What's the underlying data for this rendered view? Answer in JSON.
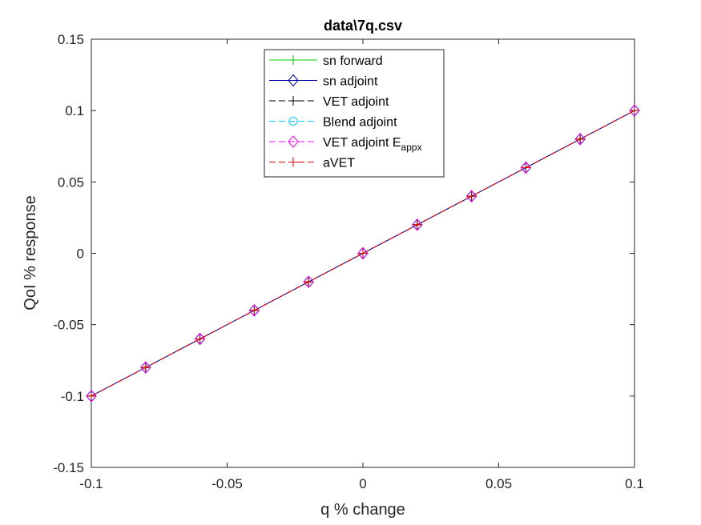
{
  "chart_data": {
    "type": "line",
    "title": "data\\7q.csv",
    "xlabel": "q % change",
    "ylabel": "QoI % response",
    "xlim": [
      -0.1,
      0.1
    ],
    "ylim": [
      -0.15,
      0.15
    ],
    "xticks": [
      -0.1,
      -0.05,
      0,
      0.05,
      0.1
    ],
    "xtick_labels": [
      "-0.1",
      "-0.05",
      "0",
      "0.05",
      "0.1"
    ],
    "yticks": [
      -0.15,
      -0.1,
      -0.05,
      0,
      0.05,
      0.1,
      0.15
    ],
    "ytick_labels": [
      "-0.15",
      "-0.1",
      "-0.05",
      "0",
      "0.05",
      "0.1",
      "0.15"
    ],
    "grid": false,
    "legend_position": "top-center",
    "x": [
      -0.1,
      -0.08,
      -0.06,
      -0.04,
      -0.02,
      0,
      0.02,
      0.04,
      0.06,
      0.08,
      0.1
    ],
    "series": [
      {
        "name": "sn forward",
        "color": "#00cc00",
        "linestyle": "solid",
        "marker": "plus",
        "values": [
          -0.1,
          -0.08,
          -0.06,
          -0.04,
          -0.02,
          0,
          0.02,
          0.04,
          0.06,
          0.08,
          0.1
        ]
      },
      {
        "name": "sn adjoint",
        "color": "#0000aa",
        "linestyle": "solid",
        "marker": "diamond",
        "values": [
          -0.1,
          -0.08,
          -0.06,
          -0.04,
          -0.02,
          0,
          0.02,
          0.04,
          0.06,
          0.08,
          0.1
        ]
      },
      {
        "name": "VET adjoint",
        "color": "#000000",
        "linestyle": "dashed",
        "marker": "plus",
        "values": [
          -0.1,
          -0.08,
          -0.06,
          -0.04,
          -0.02,
          0,
          0.02,
          0.04,
          0.06,
          0.08,
          0.1
        ]
      },
      {
        "name": "Blend adjoint",
        "color": "#00ccff",
        "linestyle": "dashed",
        "marker": "circle",
        "values": [
          -0.1,
          -0.08,
          -0.06,
          -0.04,
          -0.02,
          0,
          0.02,
          0.04,
          0.06,
          0.08,
          0.1
        ]
      },
      {
        "name": "VET adjoint E",
        "name_subscript": "appx",
        "color": "#ff00ff",
        "linestyle": "dashed",
        "marker": "diamond",
        "values": [
          -0.1,
          -0.08,
          -0.06,
          -0.04,
          -0.02,
          0,
          0.02,
          0.04,
          0.06,
          0.08,
          0.1
        ]
      },
      {
        "name": "aVET",
        "color": "#dd0000",
        "linestyle": "dashed",
        "marker": "plus",
        "values": [
          -0.1,
          -0.08,
          -0.06,
          -0.04,
          -0.02,
          0,
          0.02,
          0.04,
          0.06,
          0.08,
          0.1
        ]
      }
    ]
  }
}
